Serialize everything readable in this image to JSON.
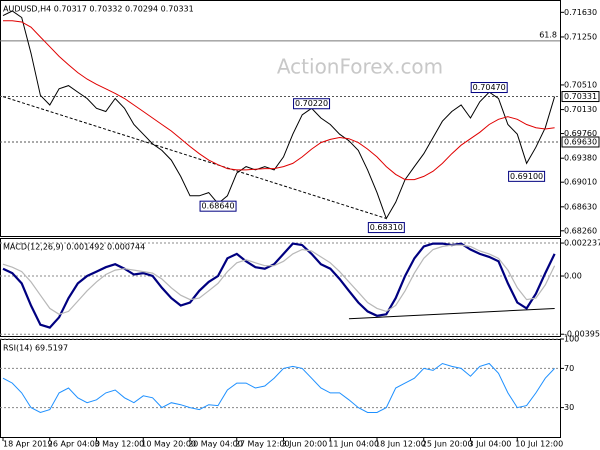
{
  "chart_data": [
    {
      "type": "line",
      "title": "AUDUSD,H4  0.70317 0.70332 0.70294 0.70331",
      "watermark": "ActionForex.com",
      "categories": [
        "18 Apr 2019",
        null,
        null,
        null,
        null,
        "26 Apr 04:00",
        null,
        null,
        null,
        null,
        "3 May 12:00",
        null,
        null,
        null,
        null,
        "10 May 20:00",
        null,
        null,
        null,
        null,
        "20 May 04:00",
        null,
        null,
        null,
        null,
        "27 May 12:00",
        null,
        null,
        null,
        null,
        "3 Jun 20:00",
        null,
        null,
        null,
        null,
        "11 Jun 04:00",
        null,
        null,
        null,
        null,
        "18 Jun 12:00",
        null,
        null,
        null,
        null,
        "25 Jun 20:00",
        null,
        null,
        null,
        null,
        "3 Jul 04:00",
        null,
        null,
        null,
        null,
        "10 Jul 12:00",
        null,
        null,
        null,
        null
      ],
      "series": [
        {
          "name": "AUDUSD",
          "color": "#000000",
          "values": [
            0.7158,
            0.7165,
            0.7155,
            0.71,
            0.7035,
            0.702,
            0.7045,
            0.705,
            0.704,
            0.703,
            0.7015,
            0.701,
            0.703,
            0.7015,
            0.699,
            0.6975,
            0.696,
            0.695,
            0.6935,
            0.691,
            0.688,
            0.688,
            0.6885,
            0.6868,
            0.688,
            0.6915,
            0.6925,
            0.692,
            0.6925,
            0.692,
            0.694,
            0.6975,
            0.7005,
            0.7015,
            0.7,
            0.699,
            0.6975,
            0.6965,
            0.695,
            0.692,
            0.6885,
            0.6845,
            0.687,
            0.6905,
            0.6925,
            0.6945,
            0.697,
            0.6995,
            0.701,
            0.702,
            0.7,
            0.7025,
            0.704,
            0.703,
            0.699,
            0.6975,
            0.693,
            0.6955,
            0.6985,
            0.7033
          ]
        },
        {
          "name": "MA",
          "color": "#e00000",
          "values": [
            0.715,
            0.715,
            0.7148,
            0.714,
            0.7125,
            0.711,
            0.7095,
            0.7082,
            0.707,
            0.706,
            0.7052,
            0.7045,
            0.7038,
            0.703,
            0.702,
            0.701,
            0.7,
            0.699,
            0.698,
            0.6968,
            0.6956,
            0.6945,
            0.6935,
            0.6928,
            0.6922,
            0.692,
            0.692,
            0.6921,
            0.6922,
            0.6922,
            0.6925,
            0.693,
            0.694,
            0.6952,
            0.6962,
            0.6967,
            0.697,
            0.6968,
            0.6962,
            0.6952,
            0.694,
            0.6925,
            0.6913,
            0.6905,
            0.6905,
            0.691,
            0.6918,
            0.693,
            0.6945,
            0.6958,
            0.6968,
            0.6978,
            0.699,
            0.6998,
            0.7002,
            0.6998,
            0.699,
            0.6985,
            0.6983,
            0.6985
          ]
        }
      ],
      "ylim": [
        0.6818,
        0.7182
      ],
      "yticks": [
        {
          "value": 0.7163,
          "label": "0.71630"
        },
        {
          "value": 0.7125,
          "label": "0.71250"
        },
        {
          "value": 0.7051,
          "label": "0.70510"
        },
        {
          "value": 0.7013,
          "label": "0.70130"
        },
        {
          "value": 0.6976,
          "label": "0.69760"
        },
        {
          "value": 0.6938,
          "label": "0.69380"
        },
        {
          "value": 0.6901,
          "label": "0.69010"
        },
        {
          "value": 0.6863,
          "label": "0.68630"
        },
        {
          "value": 0.6826,
          "label": "0.68260"
        }
      ],
      "levels": [
        {
          "value": 0.70331,
          "label": "0.70331"
        },
        {
          "value": 0.6963,
          "label": "0.69630"
        }
      ],
      "fib": {
        "value": 0.7119,
        "label": "61.8"
      },
      "annotations": [
        {
          "index": 23,
          "value": 0.6864,
          "label": "0.68640"
        },
        {
          "index": 33,
          "value": 0.7022,
          "label": "0.70220"
        },
        {
          "index": 41,
          "value": 0.6831,
          "label": "0.68310"
        },
        {
          "index": 52,
          "value": 0.7047,
          "label": "0.70470"
        },
        {
          "index": 56,
          "value": 0.691,
          "label": "0.69100"
        }
      ],
      "trendline": {
        "x": [
          0,
          41
        ],
        "values": [
          0.7033,
          0.6845
        ]
      }
    },
    {
      "type": "line",
      "title": "MACD(12,26,9) 0.001492 0.000744",
      "series": [
        {
          "name": "MACD",
          "color": "#000080",
          "width": 2.2,
          "values": [
            0.0005,
            0.0002,
            -0.0005,
            -0.002,
            -0.0033,
            -0.0035,
            -0.0028,
            -0.0015,
            -0.0005,
            0.0,
            0.0003,
            0.0006,
            0.0008,
            0.0005,
            0.0001,
            0.0002,
            0.0,
            -0.0008,
            -0.0015,
            -0.002,
            -0.0018,
            -0.001,
            -0.0004,
            0.0,
            0.0012,
            0.0015,
            0.001,
            0.0006,
            0.0005,
            0.0008,
            0.0015,
            0.0022,
            0.0021,
            0.0015,
            0.0008,
            0.0005,
            -0.0002,
            -0.001,
            -0.0018,
            -0.0024,
            -0.0027,
            -0.0026,
            -0.0015,
            0.0,
            0.0012,
            0.002,
            0.0022,
            0.0022,
            0.0021,
            0.0022,
            0.0018,
            0.0015,
            0.0013,
            0.001,
            -0.0005,
            -0.0018,
            -0.0022,
            -0.0012,
            0.0002,
            0.0015
          ]
        },
        {
          "name": "Signal",
          "color": "#b8b8b8",
          "width": 1.2,
          "values": [
            0.0008,
            0.0006,
            0.0003,
            -0.0004,
            -0.0013,
            -0.0022,
            -0.0026,
            -0.0024,
            -0.0017,
            -0.001,
            -0.0004,
            0.0001,
            0.0004,
            0.0005,
            0.0004,
            0.0003,
            0.0002,
            -0.0002,
            -0.0008,
            -0.0013,
            -0.0016,
            -0.0015,
            -0.001,
            -0.0005,
            0.0003,
            0.0009,
            0.0011,
            0.0009,
            0.0007,
            0.0007,
            0.001,
            0.0015,
            0.0018,
            0.0017,
            0.0013,
            0.0009,
            0.0003,
            -0.0004,
            -0.0011,
            -0.0018,
            -0.0022,
            -0.0024,
            -0.002,
            -0.001,
            0.0002,
            0.0012,
            0.0018,
            0.002,
            0.0021,
            0.0021,
            0.002,
            0.0017,
            0.0015,
            0.0012,
            0.0004,
            -0.0008,
            -0.0016,
            -0.0015,
            -0.0006,
            0.0007
          ]
        }
      ],
      "ylim": [
        -0.00407,
        0.00258
      ],
      "yticks": [
        0.002237,
        {
          "value": 0,
          "label": "0.00"
        },
        -0.00395
      ],
      "grid": true,
      "trendline": {
        "x": [
          37,
          59
        ],
        "values": [
          -0.0029,
          -0.0022
        ]
      }
    },
    {
      "type": "line",
      "title": "RSI(14) 69.5197",
      "series": [
        {
          "name": "RSI",
          "color": "#1e90ff",
          "width": 1,
          "values": [
            60,
            55,
            45,
            30,
            25,
            28,
            45,
            50,
            40,
            35,
            38,
            45,
            48,
            40,
            35,
            42,
            40,
            30,
            35,
            33,
            30,
            28,
            33,
            32,
            48,
            55,
            55,
            50,
            52,
            60,
            70,
            72,
            70,
            60,
            50,
            45,
            45,
            38,
            30,
            25,
            25,
            30,
            50,
            55,
            60,
            70,
            68,
            75,
            72,
            70,
            62,
            72,
            75,
            65,
            45,
            30,
            32,
            45,
            60,
            70
          ]
        }
      ],
      "ylim": [
        0,
        100
      ],
      "yticks": [
        100,
        70,
        30
      ],
      "grid": true
    }
  ]
}
